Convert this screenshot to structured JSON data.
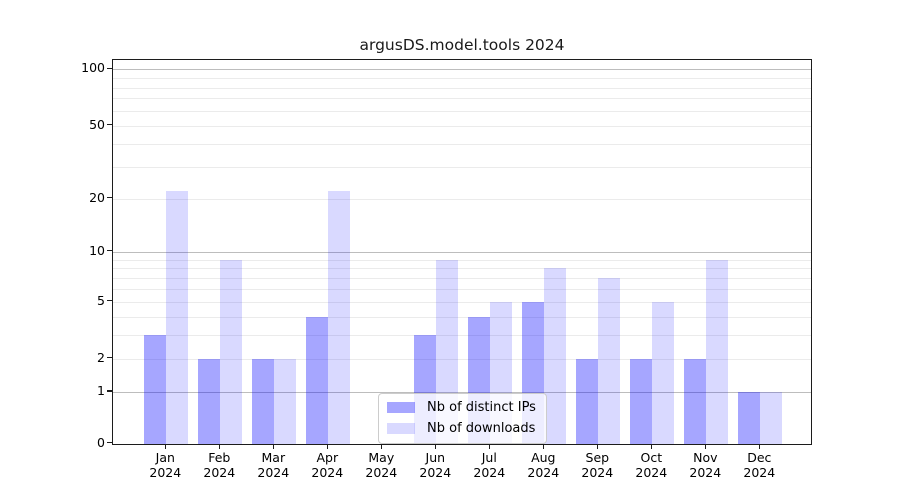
{
  "chart_data": {
    "type": "bar",
    "title": "argusDS.model.tools 2024",
    "scale": "log10(value+1)",
    "categories": [
      "Jan",
      "Feb",
      "Mar",
      "Apr",
      "May",
      "Jun",
      "Jul",
      "Aug",
      "Sep",
      "Oct",
      "Nov",
      "Dec"
    ],
    "category_subline": "2024",
    "series": [
      {
        "name": "Nb of distinct IPs",
        "color": "rgba(0,0,255,0.35)",
        "values": [
          3,
          2,
          2,
          4,
          0,
          3,
          4,
          5,
          2,
          2,
          2,
          1
        ]
      },
      {
        "name": "Nb of downloads",
        "color": "rgba(0,0,255,0.15)",
        "values": [
          22,
          9,
          2,
          22,
          0,
          9,
          5,
          8,
          7,
          5,
          9,
          1
        ]
      }
    ],
    "y_axis": {
      "tick_values": [
        0,
        1,
        2,
        5,
        10,
        20,
        50,
        100
      ],
      "tick_labels": [
        "0",
        "1",
        "2",
        "5",
        "10",
        "20",
        "50",
        "100"
      ],
      "major_gridlines": [
        1,
        10,
        100
      ],
      "minor_gridlines": [
        2,
        3,
        4,
        5,
        6,
        7,
        8,
        9,
        20,
        30,
        40,
        50,
        60,
        70,
        80,
        90
      ],
      "range_top_value": 107
    },
    "xlabel": "",
    "ylabel": "",
    "grid": "both",
    "legend": {
      "position": "bottom-center",
      "entries": [
        "Nb of distinct IPs",
        "Nb of downloads"
      ]
    },
    "colors": {
      "spine": "#1c1c1c",
      "major_grid": "#bdbdbd",
      "minor_grid": "#ebebeb",
      "background": "#ffffff"
    }
  }
}
